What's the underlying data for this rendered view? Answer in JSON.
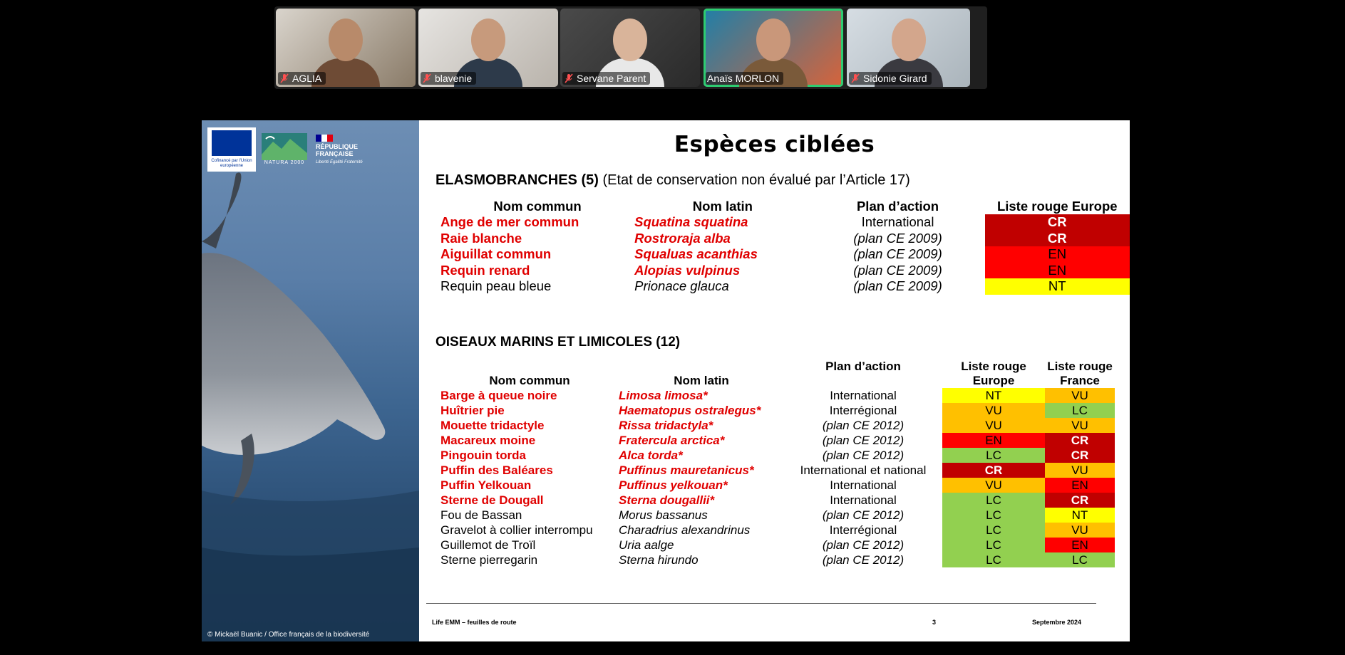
{
  "participants": [
    {
      "name": "AGLIA",
      "muted": true,
      "active": false
    },
    {
      "name": "blavenie",
      "muted": true,
      "active": false
    },
    {
      "name": "Servane Parent",
      "muted": true,
      "active": false
    },
    {
      "name": "Anaïs MORLON",
      "muted": false,
      "active": true
    },
    {
      "name": "Sidonie Girard",
      "muted": true,
      "active": false
    }
  ],
  "slide": {
    "title": "Espèces ciblées",
    "logos": {
      "eu_caption": "Cofinancé par l'Union européenne",
      "natura": "NATURA 2000",
      "rf": "RÉPUBLIQUE FRANÇAISE",
      "rf_motto": "Liberté Égalité Fraternité"
    },
    "photo_credit": "© Mickaël Buanic / Office français de la biodiversité",
    "section1": {
      "heading": "ELASMOBRANCHES (5)",
      "note": " (Etat de conservation non évalué par l’Article 17)",
      "headers": [
        "Nom commun",
        "Nom latin",
        "Plan d’action",
        "Liste rouge Europe"
      ],
      "rows": [
        {
          "common": "Ange de mer commun",
          "latin": "Squatina squatina",
          "plan": "International",
          "eu": "CR",
          "hl": true
        },
        {
          "common": "Raie blanche",
          "latin": "Rostroraja alba",
          "plan": "(plan CE 2009)",
          "eu": "CR",
          "hl": true
        },
        {
          "common": "Aiguillat commun",
          "latin": "Squaluas acanthias",
          "plan": "(plan CE 2009)",
          "eu": "EN",
          "hl": true
        },
        {
          "common": "Requin renard",
          "latin": "Alopias vulpinus",
          "plan": "(plan CE 2009)",
          "eu": "EN",
          "hl": true
        },
        {
          "common": "Requin peau bleue",
          "latin": "Prionace glauca",
          "plan": "(plan CE 2009)",
          "eu": "NT",
          "hl": false
        }
      ]
    },
    "section2": {
      "heading": "OISEAUX MARINS ET LIMICOLES (12)",
      "headers": [
        "Nom commun",
        "Nom latin",
        "Plan d’action",
        "Liste rouge Europe",
        "Liste rouge France"
      ],
      "rows": [
        {
          "common": "Barge à queue noire",
          "latin": "Limosa limosa*",
          "plan": "International",
          "eu": "NT",
          "fr": "VU",
          "hl": true
        },
        {
          "common": "Huîtrier pie",
          "latin": "Haematopus ostralegus*",
          "plan": "Interrégional",
          "eu": "VU",
          "fr": "LC",
          "hl": true
        },
        {
          "common": "Mouette tridactyle",
          "latin": "Rissa tridactyla*",
          "plan": "(plan CE 2012)",
          "eu": "VU",
          "fr": "VU",
          "hl": true
        },
        {
          "common": "Macareux moine",
          "latin": "Fratercula arctica*",
          "plan": "(plan CE 2012)",
          "eu": "EN",
          "fr": "CR",
          "hl": true
        },
        {
          "common": "Pingouin torda",
          "latin": "Alca torda*",
          "plan": "(plan CE 2012)",
          "eu": "LC",
          "fr": "CR",
          "hl": true
        },
        {
          "common": "Puffin des Baléares",
          "latin": "Puffinus mauretanicus*",
          "plan": "International et national",
          "eu": "CR",
          "fr": "VU",
          "hl": true
        },
        {
          "common": "Puffin Yelkouan",
          "latin": "Puffinus yelkouan*",
          "plan": "International",
          "eu": "VU",
          "fr": "EN",
          "hl": true
        },
        {
          "common": "Sterne de Dougall",
          "latin": "Sterna dougallii*",
          "plan": "International",
          "eu": "LC",
          "fr": "CR",
          "hl": true
        },
        {
          "common": "Fou de Bassan",
          "latin": "Morus bassanus",
          "plan": "(plan CE 2012)",
          "eu": "LC",
          "fr": "NT",
          "hl": false
        },
        {
          "common": "Gravelot à collier interrompu",
          "latin": "Charadrius alexandrinus",
          "plan": "Interrégional",
          "eu": "LC",
          "fr": "VU",
          "hl": false
        },
        {
          "common": "Guillemot de Troïl",
          "latin": "Uria aalge",
          "plan": "(plan CE 2012)",
          "eu": "LC",
          "fr": "EN",
          "hl": false
        },
        {
          "common": "Sterne pierregarin",
          "latin": "Sterna hirundo",
          "plan": "(plan CE 2012)",
          "eu": "LC",
          "fr": "LC",
          "hl": false
        }
      ]
    },
    "footer": {
      "left": "Life EMM – feuilles de route",
      "page": "3",
      "date": "Septembre 2024"
    }
  },
  "status_colors": {
    "CR": "#c00000",
    "EN": "#ff0000",
    "VU": "#ffc000",
    "NT": "#ffff00",
    "LC": "#92d050"
  }
}
